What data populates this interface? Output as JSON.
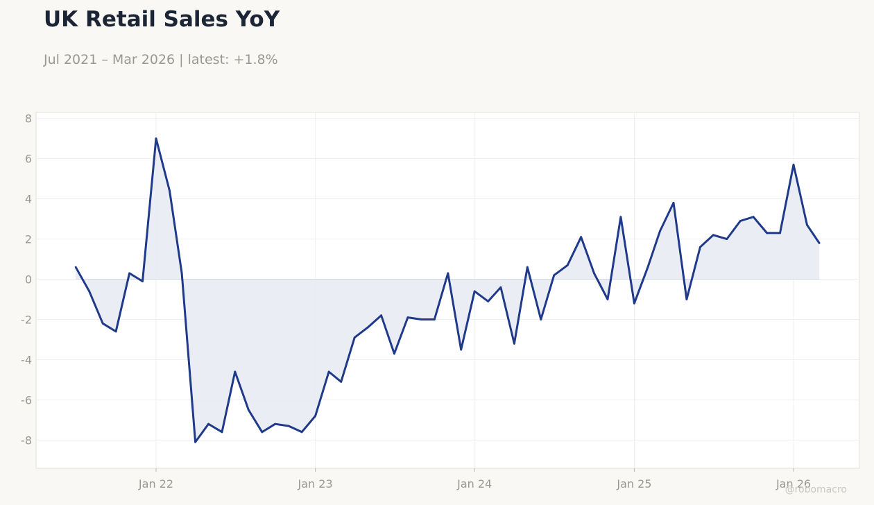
{
  "title": "UK Retail Sales YoY",
  "subtitle": "Jul 2021 – Mar 2026 | latest: +1.8%",
  "watermark": "@robomacro",
  "colors": {
    "line": "#1f3a8a",
    "fill": "#e8eaf3",
    "background": "#f9f8f5",
    "plot_background": "#ffffff",
    "grid": "#efefef"
  },
  "chart_data": {
    "type": "line",
    "title": "UK Retail Sales YoY",
    "subtitle": "Jul 2021 – Mar 2026 | latest: +1.8%",
    "xlabel": "",
    "ylabel": "",
    "ylim": [
      -9.4,
      8.3
    ],
    "xlim": [
      "2021-04-01",
      "2026-06-01"
    ],
    "yticks": [
      8,
      6,
      4,
      2,
      0,
      -2,
      -4,
      -6,
      -8
    ],
    "ytick_labels": [
      "8",
      "6",
      "4",
      "2",
      "0",
      "-2",
      "-4",
      "-6",
      "-8"
    ],
    "xticks": [
      "2022-01-01",
      "2023-01-01",
      "2024-01-01",
      "2025-01-01",
      "2026-01-01"
    ],
    "xtick_labels": [
      "Jan 22",
      "Jan 23",
      "Jan 24",
      "Jan 25",
      "Jan 26"
    ],
    "grid": true,
    "area_fill_to_zero": true,
    "series": [
      {
        "x": [
          "2021-07",
          "2021-08",
          "2021-09",
          "2021-10",
          "2021-11",
          "2021-12",
          "2022-01",
          "2022-02",
          "2022-03",
          "2022-04",
          "2022-05",
          "2022-06",
          "2022-07",
          "2022-08",
          "2022-09",
          "2022-10",
          "2022-11",
          "2022-12",
          "2023-01",
          "2023-02",
          "2023-03",
          "2023-04",
          "2023-05",
          "2023-06",
          "2023-07",
          "2023-08",
          "2023-09",
          "2023-10",
          "2023-11",
          "2023-12",
          "2024-01",
          "2024-02",
          "2024-03",
          "2024-04",
          "2024-05",
          "2024-06",
          "2024-07",
          "2024-08",
          "2024-09",
          "2024-10",
          "2024-11",
          "2024-12",
          "2025-01",
          "2025-02",
          "2025-03",
          "2025-04",
          "2025-05",
          "2025-06",
          "2025-07",
          "2025-08",
          "2025-09",
          "2025-10",
          "2025-11",
          "2025-12",
          "2026-01",
          "2026-02",
          "2026-03"
        ],
        "values": [
          0.6,
          -0.6,
          -2.2,
          -2.6,
          0.3,
          -0.1,
          7.0,
          4.4,
          0.3,
          -8.1,
          -7.2,
          -7.6,
          -4.6,
          -6.5,
          -7.6,
          -7.2,
          -7.3,
          -7.6,
          -6.8,
          -4.6,
          -5.1,
          -2.9,
          -2.4,
          -1.8,
          -3.7,
          -1.9,
          -2.0,
          -2.0,
          0.3,
          -3.5,
          -0.6,
          -1.1,
          -0.4,
          -3.2,
          0.6,
          -2.0,
          0.2,
          0.7,
          2.1,
          0.3,
          -1.0,
          3.1,
          -1.2,
          0.6,
          2.4,
          3.8,
          -1.0,
          1.6,
          2.2,
          2.0,
          2.9,
          3.1,
          2.3,
          2.3,
          5.7,
          2.7,
          1.8
        ]
      }
    ]
  }
}
